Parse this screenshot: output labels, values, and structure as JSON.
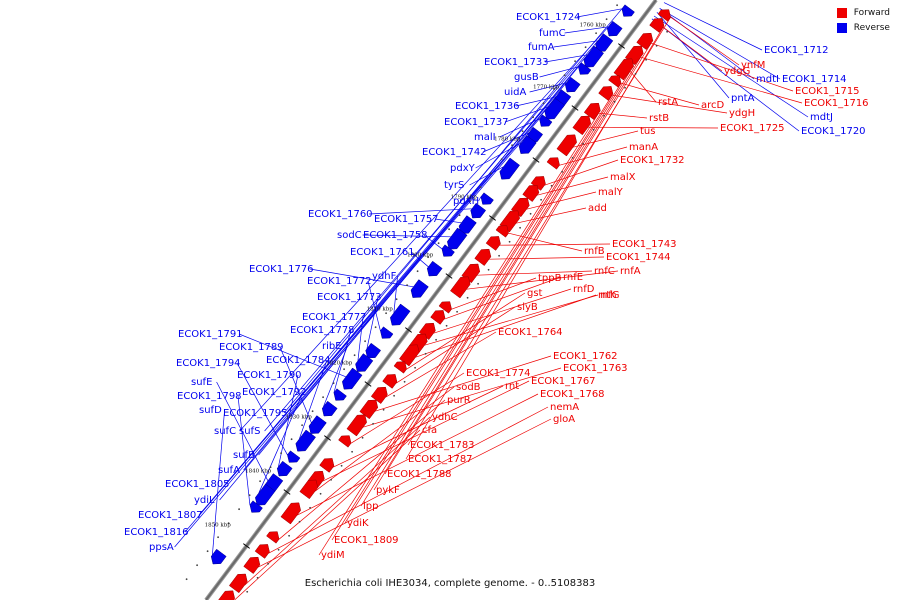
{
  "legend": {
    "forward_label": "Forward",
    "reverse_label": "Reverse",
    "forward_color": "#ee0000",
    "reverse_color": "#0000ee"
  },
  "caption": "Escherichia coli IHE3034, complete genome. - 0..5108383",
  "ticks": [
    "1760 kbp",
    "1770 kbp",
    "1780 kbp",
    "1790 kbp",
    "1800 kbp",
    "1810 kbp",
    "1820 kbp",
    "1830 kbp",
    "1840 kbp",
    "1850 kbp"
  ],
  "reverse_labels": [
    "ECOK1_1724",
    "fumC",
    "fumA",
    "ECOK1_1733",
    "gusB",
    "uidA",
    "ECOK1_1736",
    "ECOK1_1737",
    "malI",
    "ECOK1_1742",
    "pdxY",
    "tyrS",
    "pdxH",
    "ECOK1_1760",
    "ECOK1_1757",
    "sodC",
    "ECOK1_1758",
    "ECOK1_1761",
    "ECOK1_1776",
    "ydhF",
    "ECOK1_1772",
    "ECOK1_1773",
    "ECOK1_1777",
    "ECOK1_1791",
    "ECOK1_1778",
    "ribE",
    "ECOK1_1789",
    "ECOK1_1784",
    "ECOK1_1794",
    "ECOK1_1790",
    "sufE",
    "ECOK1_1792",
    "ECOK1_1798",
    "sufD",
    "ECOK1_1795",
    "sufC",
    "sufS",
    "sufB",
    "sufA",
    "ECOK1_1805",
    "ydiL",
    "ECOK1_1807",
    "ECOK1_1816",
    "ppsA",
    "ECOK1_1712",
    "mdtI",
    "ECOK1_1714",
    "pntA",
    "mdtJ",
    "ECOK1_1720"
  ],
  "forward_labels": [
    "ynfM",
    "ydgG",
    "ECOK1_1715",
    "ECOK1_1716",
    "rstA",
    "arcD",
    "ydgH",
    "rstB",
    "ECOK1_1725",
    "tus",
    "manA",
    "ECOK1_1732",
    "malX",
    "malY",
    "add",
    "rnfB",
    "ECOK1_1743",
    "ECOK1_1744",
    "rnfC",
    "rnfA",
    "tppB",
    "rnfE",
    "rnfD",
    "nth",
    "rnfG",
    "gst",
    "slyB",
    "ECOK1_1764",
    "ECOK1_1762",
    "ECOK1_1763",
    "ECOK1_1774",
    "rnt",
    "ECOK1_1767",
    "sodB",
    "ECOK1_1768",
    "purR",
    "nemA",
    "gloA",
    "ydhC",
    "cfa",
    "ECOK1_1783",
    "ECOK1_1787",
    "ECOK1_1788",
    "pykF",
    "lpp",
    "ydiK",
    "ECOK1_1809",
    "ydiM"
  ]
}
